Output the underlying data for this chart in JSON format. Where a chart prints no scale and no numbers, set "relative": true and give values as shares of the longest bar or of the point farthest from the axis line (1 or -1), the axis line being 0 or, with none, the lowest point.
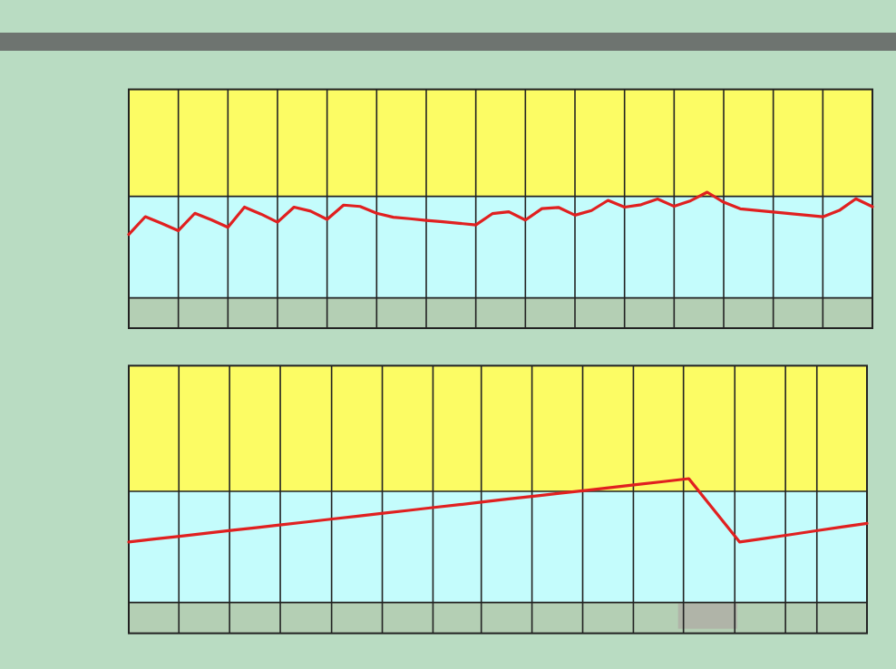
{
  "chart_data": [
    {
      "type": "line",
      "relative": true,
      "grid": true,
      "categories": [
        null,
        null,
        null,
        null,
        null,
        null,
        null,
        null,
        null,
        null,
        null,
        null,
        null,
        null,
        null,
        null,
        null,
        null,
        null,
        null,
        null,
        null,
        null,
        null,
        null,
        null,
        null,
        null,
        null,
        null,
        null,
        null,
        null,
        null,
        null,
        null,
        null,
        null,
        null,
        null,
        null,
        null,
        null,
        null,
        null,
        null
      ],
      "series": [
        {
          "color": "#e02020",
          "values": [
            0.689,
            0.82,
            0.77,
            0.717,
            0.845,
            0.797,
            0.742,
            0.89,
            0.839,
            0.779,
            0.89,
            0.861,
            0.8,
            0.905,
            0.895,
            0.845,
            0.816,
            0.805,
            0.793,
            0.782,
            0.771,
            0.759,
            0.842,
            0.856,
            0.795,
            0.879,
            0.888,
            0.831,
            0.865,
            0.94,
            0.89,
            0.908,
            0.95,
            0.896,
            0.937,
            1.0,
            0.926,
            0.878,
            0.866,
            0.854,
            0.842,
            0.831,
            0.819,
            0.866,
            0.952,
            0.893
          ]
        }
      ]
    },
    {
      "type": "line",
      "relative": true,
      "grid": true,
      "categories": [
        null,
        null,
        null,
        null,
        null,
        null,
        null,
        null,
        null,
        null,
        null,
        null,
        null,
        null,
        null,
        null,
        null,
        null,
        null,
        null,
        null,
        null,
        null,
        null,
        null,
        null,
        null,
        null,
        null,
        null
      ],
      "series": [
        {
          "color": "#e02020",
          "values": [
            0.59,
            0.609,
            0.627,
            0.646,
            0.665,
            0.683,
            0.702,
            0.72,
            0.739,
            0.758,
            0.776,
            0.795,
            0.814,
            0.832,
            0.851,
            0.87,
            0.888,
            0.907,
            0.925,
            0.944,
            0.963,
            0.981,
            1.0,
            0.795,
            0.59,
            0.614,
            0.638,
            0.663,
            0.687,
            0.711
          ]
        }
      ]
    }
  ]
}
